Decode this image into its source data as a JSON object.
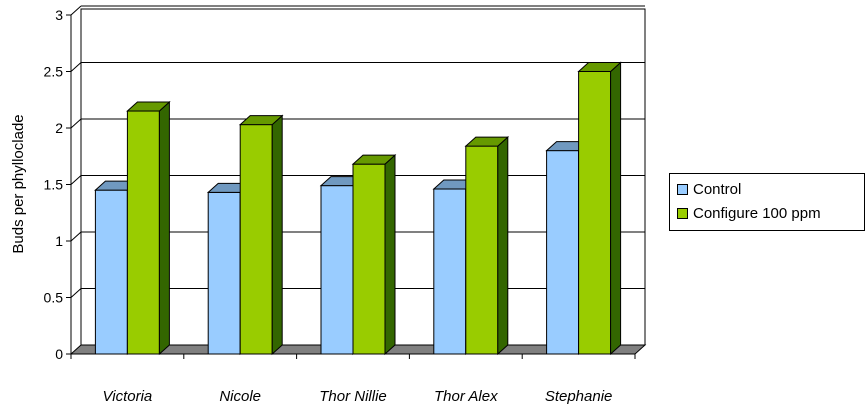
{
  "chart_data": {
    "type": "bar",
    "style": "3d-clustered-column",
    "categories": [
      "Victoria",
      "Nicole",
      "Thor Nillie",
      "Thor Alex",
      "Stephanie"
    ],
    "series": [
      {
        "name": "Control",
        "values": [
          1.45,
          1.43,
          1.49,
          1.46,
          1.8
        ],
        "color": "#99ccff"
      },
      {
        "name": "Configure 100 ppm",
        "values": [
          2.15,
          2.03,
          1.68,
          1.84,
          2.5
        ],
        "color": "#99cc00"
      }
    ],
    "title": "",
    "xlabel": "",
    "ylabel": "Buds per phylloclade",
    "ylim": [
      0,
      3
    ],
    "yticks": [
      "0",
      "0.5",
      "1",
      "1.5",
      "2",
      "2.5",
      "3"
    ],
    "ytick_values": [
      0,
      0.5,
      1,
      1.5,
      2,
      2.5,
      3
    ],
    "grid": true,
    "legend_position": "right"
  }
}
